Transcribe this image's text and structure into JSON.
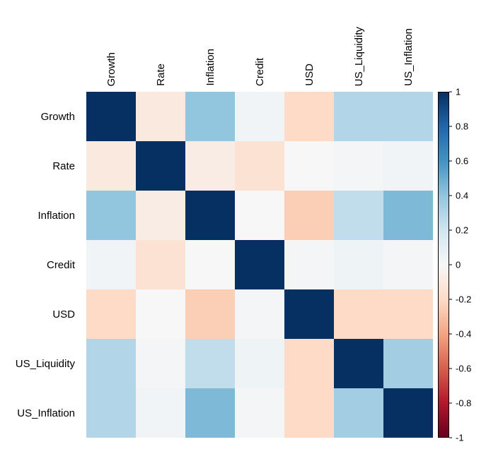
{
  "chart_data": {
    "type": "heatmap",
    "title": "",
    "categories": [
      "Growth",
      "Rate",
      "Inflation",
      "Credit",
      "USD",
      "US_Liquidity",
      "US_Inflation"
    ],
    "matrix": [
      [
        1.0,
        -0.1,
        0.4,
        0.03,
        -0.2,
        0.3,
        0.3
      ],
      [
        -0.1,
        1.0,
        -0.08,
        -0.15,
        0.0,
        0.02,
        0.03
      ],
      [
        0.4,
        -0.08,
        1.0,
        0.0,
        -0.25,
        0.25,
        0.45
      ],
      [
        0.03,
        -0.15,
        0.0,
        1.0,
        0.02,
        0.05,
        0.02
      ],
      [
        -0.2,
        0.0,
        -0.25,
        0.02,
        1.0,
        -0.2,
        -0.2
      ],
      [
        0.3,
        0.02,
        0.25,
        0.05,
        -0.2,
        1.0,
        0.35
      ],
      [
        0.3,
        0.03,
        0.45,
        0.02,
        -0.2,
        0.35,
        1.0
      ]
    ],
    "colormap": {
      "name": "RdBu-reversed",
      "stops_low_to_high": [
        "#67001F",
        "#B2182B",
        "#D6604D",
        "#F4A582",
        "#FDDBC7",
        "#F7F7F7",
        "#D1E5F0",
        "#92C5DE",
        "#4393C3",
        "#2166AC",
        "#053061"
      ]
    },
    "colorbar": {
      "min": -1,
      "max": 1,
      "tick_labels": [
        "1",
        "0.8",
        "0.6",
        "0.4",
        "0.2",
        "0",
        "-0.2",
        "-0.4",
        "-0.6",
        "-0.8",
        "-1"
      ],
      "position": "right"
    },
    "layout": {
      "grid": "off",
      "x_labels_rotation": 90,
      "background": "#ffffff"
    }
  }
}
